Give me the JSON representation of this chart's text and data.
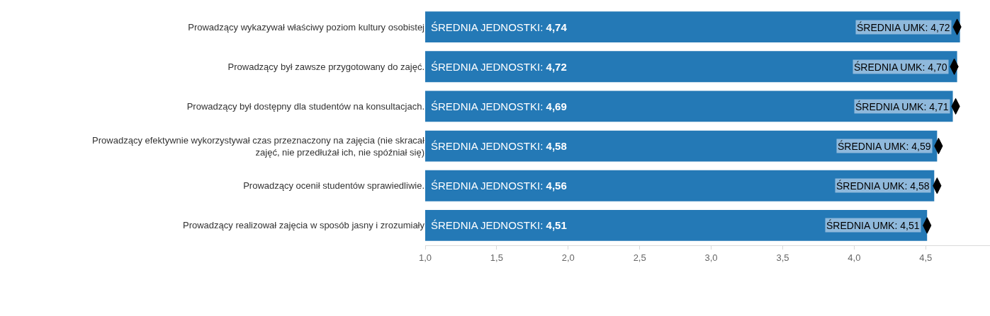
{
  "chart_data": {
    "type": "bar",
    "orientation": "horizontal",
    "categories": [
      "Prowadzący wykazywał właściwy poziom kultury osobistej",
      "Prowadzący był zawsze przygotowany do zajęć.",
      "Prowadzący był dostępny dla studentów na konsultacjach.",
      "Prowadzący efektywnie wykorzystywał czas przeznaczony na zajęcia (nie skracał\nzajęć, nie przedłużał ich, nie spóźniał się)",
      "Prowadzący ocenił studentów sprawiedliwie.",
      "Prowadzący realizował zajęcia w sposób jasny i zrozumiały"
    ],
    "xlim": [
      1,
      4.95
    ],
    "xticks": [
      {
        "value": 1,
        "label": "1,0"
      },
      {
        "value": 1.5,
        "label": "1,5"
      },
      {
        "value": 2,
        "label": "2,0"
      },
      {
        "value": 2.5,
        "label": "2,5"
      },
      {
        "value": 3,
        "label": "3,0"
      },
      {
        "value": 3.5,
        "label": "3,5"
      },
      {
        "value": 4,
        "label": "4,0"
      },
      {
        "value": 4.5,
        "label": "4,5"
      }
    ],
    "grid": false,
    "series": [
      {
        "color": "#2479b6",
        "values": [
          4.74,
          4.72,
          4.69,
          4.58,
          4.56,
          4.51
        ],
        "value_labels": [
          "ŚREDNIA JEDNOSTKI: 4,74",
          "ŚREDNIA JEDNOSTKI: 4,72",
          "ŚREDNIA JEDNOSTKI: 4,69",
          "ŚREDNIA JEDNOSTKI: 4,58",
          "ŚREDNIA JEDNOSTKI: 4,56",
          "ŚREDNIA JEDNOSTKI: 4,51"
        ]
      },
      {
        "type": "scatter",
        "color": "#000000",
        "values": [
          4.72,
          4.7,
          4.71,
          4.59,
          4.58,
          4.51
        ],
        "value_labels": [
          "ŚREDNIA UMK: 4,72",
          "ŚREDNIA UMK: 4,70",
          "ŚREDNIA UMK: 4,71",
          "ŚREDNIA UMK: 4,59",
          "ŚREDNIA UMK: 4,58",
          "ŚREDNIA UMK: 4,51"
        ]
      }
    ]
  }
}
